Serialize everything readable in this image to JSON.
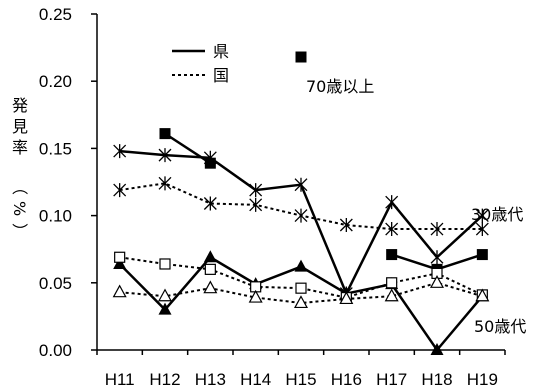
{
  "chart_data": {
    "type": "line",
    "ylabel": "発見率（%）",
    "ylim": [
      0,
      0.25
    ],
    "yticks": [
      "0.00",
      "0.05",
      "0.10",
      "0.15",
      "0.20",
      "0.25"
    ],
    "categories": [
      "H11",
      "H12",
      "H13",
      "H14",
      "H15",
      "H16",
      "H17",
      "H18",
      "H19"
    ],
    "grid": false,
    "legend": {
      "position": "top-left",
      "items": [
        {
          "label": "県",
          "style": "solid"
        },
        {
          "label": "国",
          "style": "dotted"
        }
      ]
    },
    "annotations": [
      "70歳以上",
      "30歳代",
      "50歳代"
    ],
    "series": [
      {
        "group": "70歳以上",
        "source": "県",
        "style": "solid",
        "marker": "square-filled",
        "values": [
          null,
          0.161,
          0.139,
          null,
          0.218,
          null,
          0.071,
          0.06,
          0.071
        ]
      },
      {
        "group": "30歳代",
        "source": "県",
        "style": "solid",
        "marker": "asterisk",
        "values": [
          0.148,
          0.145,
          0.143,
          0.119,
          0.123,
          0.042,
          0.11,
          0.069,
          0.1
        ]
      },
      {
        "group": "30歳代",
        "source": "国",
        "style": "dotted",
        "marker": "asterisk",
        "values": [
          0.119,
          0.124,
          0.109,
          0.108,
          0.1,
          0.093,
          0.09,
          0.09,
          0.09
        ]
      },
      {
        "group": "50歳代",
        "source": "県",
        "style": "solid",
        "marker": "triangle-filled",
        "values": [
          0.064,
          0.03,
          0.069,
          0.049,
          0.062,
          0.042,
          0.049,
          0.0,
          0.04
        ]
      },
      {
        "group": "50歳代",
        "source": "国",
        "style": "dotted",
        "marker": "square-open",
        "values": [
          0.069,
          0.064,
          0.06,
          0.047,
          0.046,
          0.039,
          0.05,
          0.057,
          0.041
        ]
      },
      {
        "group": "50歳代",
        "source": "国",
        "style": "dotted",
        "marker": "triangle-open",
        "values": [
          0.043,
          0.04,
          0.046,
          0.039,
          0.035,
          0.038,
          0.04,
          0.05,
          0.04
        ]
      }
    ]
  }
}
